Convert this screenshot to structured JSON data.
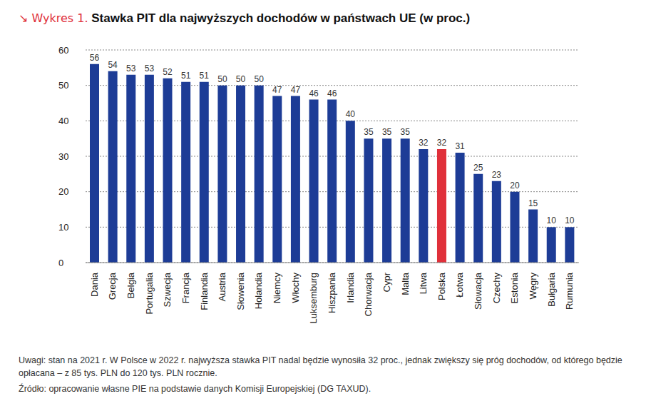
{
  "chart_data": {
    "type": "bar",
    "figure_label": "↘ Wykres 1.",
    "title": "Stawka PIT dla najwyższych dochodów w państwach UE (w proc.)",
    "categories": [
      "Dania",
      "Grecja",
      "Belgia",
      "Portugalia",
      "Szwecja",
      "Francja",
      "Finlandia",
      "Austria",
      "Słowenia",
      "Holandia",
      "Niemcy",
      "Włochy",
      "Luksemburg",
      "Hiszpania",
      "Irlandia",
      "Chorwacja",
      "Cypr",
      "Malta",
      "Litwa",
      "Polska",
      "Łotwa",
      "Słowacja",
      "Czechy",
      "Estonia",
      "Węgry",
      "Bułgaria",
      "Rumunia"
    ],
    "values": [
      56,
      54,
      53,
      53,
      52,
      51,
      51,
      50,
      50,
      50,
      47,
      47,
      46,
      46,
      40,
      35,
      35,
      35,
      32,
      32,
      31,
      25,
      23,
      20,
      15,
      10,
      10
    ],
    "colors": [
      "#1d3c96",
      "#1d3c96",
      "#1d3c96",
      "#1d3c96",
      "#1d3c96",
      "#1d3c96",
      "#1d3c96",
      "#1d3c96",
      "#1d3c96",
      "#1d3c96",
      "#1d3c96",
      "#1d3c96",
      "#1d3c96",
      "#1d3c96",
      "#1d3c96",
      "#1d3c96",
      "#1d3c96",
      "#1d3c96",
      "#1d3c96",
      "#e0303a",
      "#1d3c96",
      "#1d3c96",
      "#1d3c96",
      "#1d3c96",
      "#1d3c96",
      "#1d3c96",
      "#1d3c96"
    ],
    "ylim": [
      0,
      60
    ],
    "yticks": [
      0,
      10,
      20,
      30,
      40,
      50,
      60
    ],
    "grid": true,
    "data_labels": true,
    "annotations": [
      "Uwagi: stan na 2021 r. W Polsce w 2022 r. najwyższa stawka PIT nadal będzie wynosiła 32 proc., jednak zwiększy się próg dochodów, od którego będzie opłacana – z 85 tys. PLN do 120 tys. PLN rocznie.",
      "Źródło: opracowanie własne PIE na podstawie danych Komisji Europejskiej (DG TAXUD)."
    ]
  }
}
